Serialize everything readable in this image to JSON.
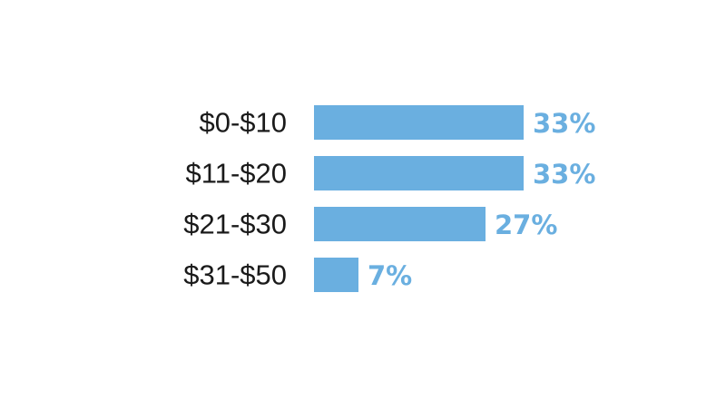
{
  "chart_data": {
    "type": "bar",
    "orientation": "horizontal",
    "categories": [
      "$0-$10",
      "$11-$20",
      "$21-$30",
      "$31-$50"
    ],
    "values": [
      33,
      33,
      27,
      7
    ],
    "value_labels": [
      "33%",
      "33%",
      "27%",
      "7%"
    ],
    "unit": "%",
    "title": "",
    "xlabel": "",
    "ylabel": "",
    "xlim": [
      0,
      33
    ],
    "grid": false,
    "legend": "none",
    "colors": {
      "bar": "#6aafe0",
      "value_label": "#6aafe0",
      "category_label": "#1a1a1a"
    }
  }
}
